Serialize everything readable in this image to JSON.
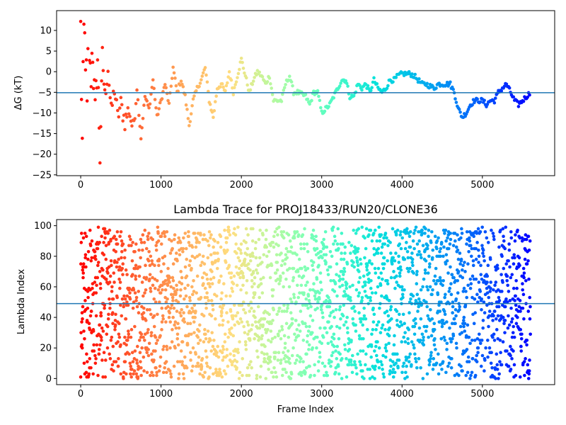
{
  "chart_data": [
    {
      "type": "scatter",
      "title": "",
      "xlabel": "",
      "ylabel": "ΔG (kT)",
      "xlim": [
        -300,
        5900
      ],
      "ylim": [
        -25.2,
        14.8
      ],
      "x_ticks": [
        0,
        1000,
        2000,
        3000,
        4000,
        5000
      ],
      "y_ticks": [
        -25,
        -20,
        -15,
        -10,
        -5,
        0,
        5,
        10
      ],
      "hline": -5.1,
      "colormap": "rainbow, color runs red to violet with increasing frame index",
      "x_range": [
        0,
        5600
      ],
      "trace": [
        [
          0,
          10
        ],
        [
          20,
          -18
        ],
        [
          40,
          9
        ],
        [
          60,
          5
        ],
        [
          80,
          -10
        ],
        [
          100,
          12
        ],
        [
          120,
          -2
        ],
        [
          150,
          6
        ],
        [
          180,
          -12
        ],
        [
          210,
          3
        ],
        [
          240,
          -21
        ],
        [
          270,
          4
        ],
        [
          300,
          -6
        ],
        [
          340,
          1
        ],
        [
          380,
          -10
        ],
        [
          420,
          -4
        ],
        [
          460,
          -11
        ],
        [
          500,
          -8
        ],
        [
          550,
          -12
        ],
        [
          600,
          -9
        ],
        [
          650,
          -14
        ],
        [
          700,
          -4
        ],
        [
          750,
          -16
        ],
        [
          800,
          -6
        ],
        [
          850,
          -9
        ],
        [
          900,
          -2
        ],
        [
          950,
          -11
        ],
        [
          1000,
          -7
        ],
        [
          1050,
          -3
        ],
        [
          1100,
          -8
        ],
        [
          1150,
          1
        ],
        [
          1200,
          -5
        ],
        [
          1250,
          -2
        ],
        [
          1300,
          -6
        ],
        [
          1350,
          -13
        ],
        [
          1400,
          -7
        ],
        [
          1450,
          -4
        ],
        [
          1500,
          -2
        ],
        [
          1550,
          1
        ],
        [
          1600,
          -7
        ],
        [
          1650,
          -11
        ],
        [
          1700,
          -4
        ],
        [
          1750,
          -3
        ],
        [
          1800,
          -5
        ],
        [
          1850,
          0
        ],
        [
          1900,
          -5
        ],
        [
          1950,
          -1
        ],
        [
          2000,
          3
        ],
        [
          2050,
          -1
        ],
        [
          2100,
          -5
        ],
        [
          2150,
          -2
        ],
        [
          2200,
          0
        ],
        [
          2250,
          -1
        ],
        [
          2300,
          -3
        ],
        [
          2350,
          -1
        ],
        [
          2400,
          -7
        ],
        [
          2500,
          -7
        ],
        [
          2550,
          -3
        ],
        [
          2600,
          -1
        ],
        [
          2650,
          -5
        ],
        [
          2700,
          -5
        ],
        [
          2800,
          -6
        ],
        [
          2850,
          -8
        ],
        [
          2900,
          -5
        ],
        [
          2950,
          -5
        ],
        [
          3000,
          -10
        ],
        [
          3050,
          -9
        ],
        [
          3100,
          -8
        ],
        [
          3150,
          -6
        ],
        [
          3200,
          -4
        ],
        [
          3250,
          -2
        ],
        [
          3300,
          -2
        ],
        [
          3350,
          -6
        ],
        [
          3400,
          -6
        ],
        [
          3450,
          -3
        ],
        [
          3500,
          -4
        ],
        [
          3550,
          -3
        ],
        [
          3600,
          -5
        ],
        [
          3650,
          -2
        ],
        [
          3700,
          -4
        ],
        [
          3750,
          -5
        ],
        [
          3800,
          -4
        ],
        [
          3850,
          -2
        ],
        [
          3900,
          -2
        ],
        [
          3950,
          -1
        ],
        [
          4000,
          -0.5
        ],
        [
          4100,
          -0.5
        ],
        [
          4150,
          -1
        ],
        [
          4200,
          -2
        ],
        [
          4250,
          -3
        ],
        [
          4300,
          -3
        ],
        [
          4400,
          -4
        ],
        [
          4450,
          -3
        ],
        [
          4500,
          -3
        ],
        [
          4600,
          -3
        ],
        [
          4650,
          -5
        ],
        [
          4700,
          -9
        ],
        [
          4750,
          -11
        ],
        [
          4800,
          -10
        ],
        [
          4850,
          -8
        ],
        [
          4900,
          -7
        ],
        [
          5000,
          -7
        ],
        [
          5050,
          -8
        ],
        [
          5100,
          -7
        ],
        [
          5150,
          -7
        ],
        [
          5200,
          -5
        ],
        [
          5250,
          -4
        ],
        [
          5300,
          -3
        ],
        [
          5350,
          -5
        ],
        [
          5400,
          -7
        ],
        [
          5450,
          -8
        ],
        [
          5500,
          -7
        ],
        [
          5550,
          -6
        ],
        [
          5600,
          -5
        ]
      ]
    },
    {
      "type": "scatter",
      "title": "Lambda Trace for PROJ18433/RUN20/CLONE36",
      "xlabel": "Frame Index",
      "ylabel": "Lambda Index",
      "xlim": [
        -300,
        5900
      ],
      "ylim": [
        -4,
        104
      ],
      "x_ticks": [
        0,
        1000,
        2000,
        3000,
        4000,
        5000
      ],
      "y_ticks": [
        0,
        20,
        40,
        60,
        80,
        100
      ],
      "hline": 49,
      "colormap": "rainbow, color runs red to violet with increasing frame index",
      "x_range": [
        0,
        5600
      ],
      "y_range": [
        0,
        99
      ],
      "note_points": "dense scatter of lambda indices 0 to 99 over frames 0 to 5600"
    }
  ]
}
